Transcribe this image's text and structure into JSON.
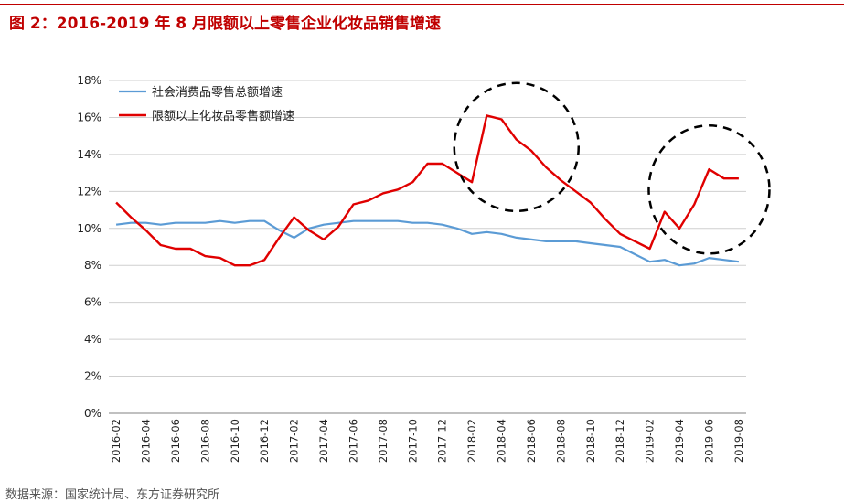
{
  "figure_title": "图 2：2016-2019 年 8 月限额以上零售企业化妆品销售增速",
  "source_note": "数据来源：国家统计局、东方证券研究所",
  "colors": {
    "title": "#c00000",
    "series_1": "#5b9bd5",
    "series_2": "#e00000",
    "circle": "#000000"
  },
  "chart_data": {
    "type": "line",
    "x": [
      "2016-02",
      "2016-03",
      "2016-04",
      "2016-05",
      "2016-06",
      "2016-07",
      "2016-08",
      "2016-09",
      "2016-10",
      "2016-11",
      "2016-12",
      "2017-01",
      "2017-02",
      "2017-03",
      "2017-04",
      "2017-05",
      "2017-06",
      "2017-07",
      "2017-08",
      "2017-09",
      "2017-10",
      "2017-11",
      "2017-12",
      "2018-01",
      "2018-02",
      "2018-03",
      "2018-04",
      "2018-05",
      "2018-06",
      "2018-07",
      "2018-08",
      "2018-09",
      "2018-10",
      "2018-11",
      "2018-12",
      "2019-01",
      "2019-02",
      "2019-03",
      "2019-04",
      "2019-05",
      "2019-06",
      "2019-07",
      "2019-08"
    ],
    "x_tick_labels": [
      "2016-02",
      "2016-04",
      "2016-06",
      "2016-08",
      "2016-10",
      "2016-12",
      "2017-02",
      "2017-04",
      "2017-06",
      "2017-08",
      "2017-10",
      "2017-12",
      "2018-02",
      "2018-04",
      "2018-06",
      "2018-08",
      "2018-10",
      "2018-12",
      "2019-02",
      "2019-04",
      "2019-06",
      "2019-08"
    ],
    "y_ticks": [
      "0%",
      "2%",
      "4%",
      "6%",
      "8%",
      "10%",
      "12%",
      "14%",
      "16%",
      "18%"
    ],
    "ylim": [
      0,
      18
    ],
    "grid": "horizontal",
    "legend_position": "top-left",
    "series": [
      {
        "name": "社会消费品零售总额增速",
        "color_key": "series_1",
        "values": [
          10.2,
          10.3,
          10.3,
          10.2,
          10.3,
          10.3,
          10.3,
          10.4,
          10.3,
          10.4,
          10.4,
          9.9,
          9.5,
          10.0,
          10.2,
          10.3,
          10.4,
          10.4,
          10.4,
          10.4,
          10.3,
          10.3,
          10.2,
          10.0,
          9.7,
          9.8,
          9.7,
          9.5,
          9.4,
          9.3,
          9.3,
          9.3,
          9.2,
          9.1,
          9.0,
          8.6,
          8.2,
          8.3,
          8.0,
          8.1,
          8.4,
          8.3,
          8.2
        ]
      },
      {
        "name": "限额以上化妆品零售额增速",
        "color_key": "series_2",
        "values": [
          11.4,
          10.6,
          9.9,
          9.1,
          8.9,
          8.9,
          8.5,
          8.4,
          8.0,
          8.0,
          8.3,
          9.5,
          10.6,
          9.9,
          9.4,
          10.1,
          11.3,
          11.5,
          11.9,
          12.1,
          12.5,
          13.5,
          13.5,
          13.0,
          12.5,
          16.1,
          15.9,
          14.8,
          14.2,
          13.3,
          12.6,
          12.0,
          11.4,
          10.5,
          9.7,
          9.3,
          8.9,
          10.9,
          10.0,
          11.3,
          13.2,
          12.7,
          12.7
        ]
      }
    ],
    "annotations": [
      {
        "type": "dashed-circle",
        "center_x": "2018-05",
        "center_y": 14.4
      },
      {
        "type": "dashed-circle",
        "center_x": "2019-06",
        "center_y": 12.1
      }
    ]
  }
}
